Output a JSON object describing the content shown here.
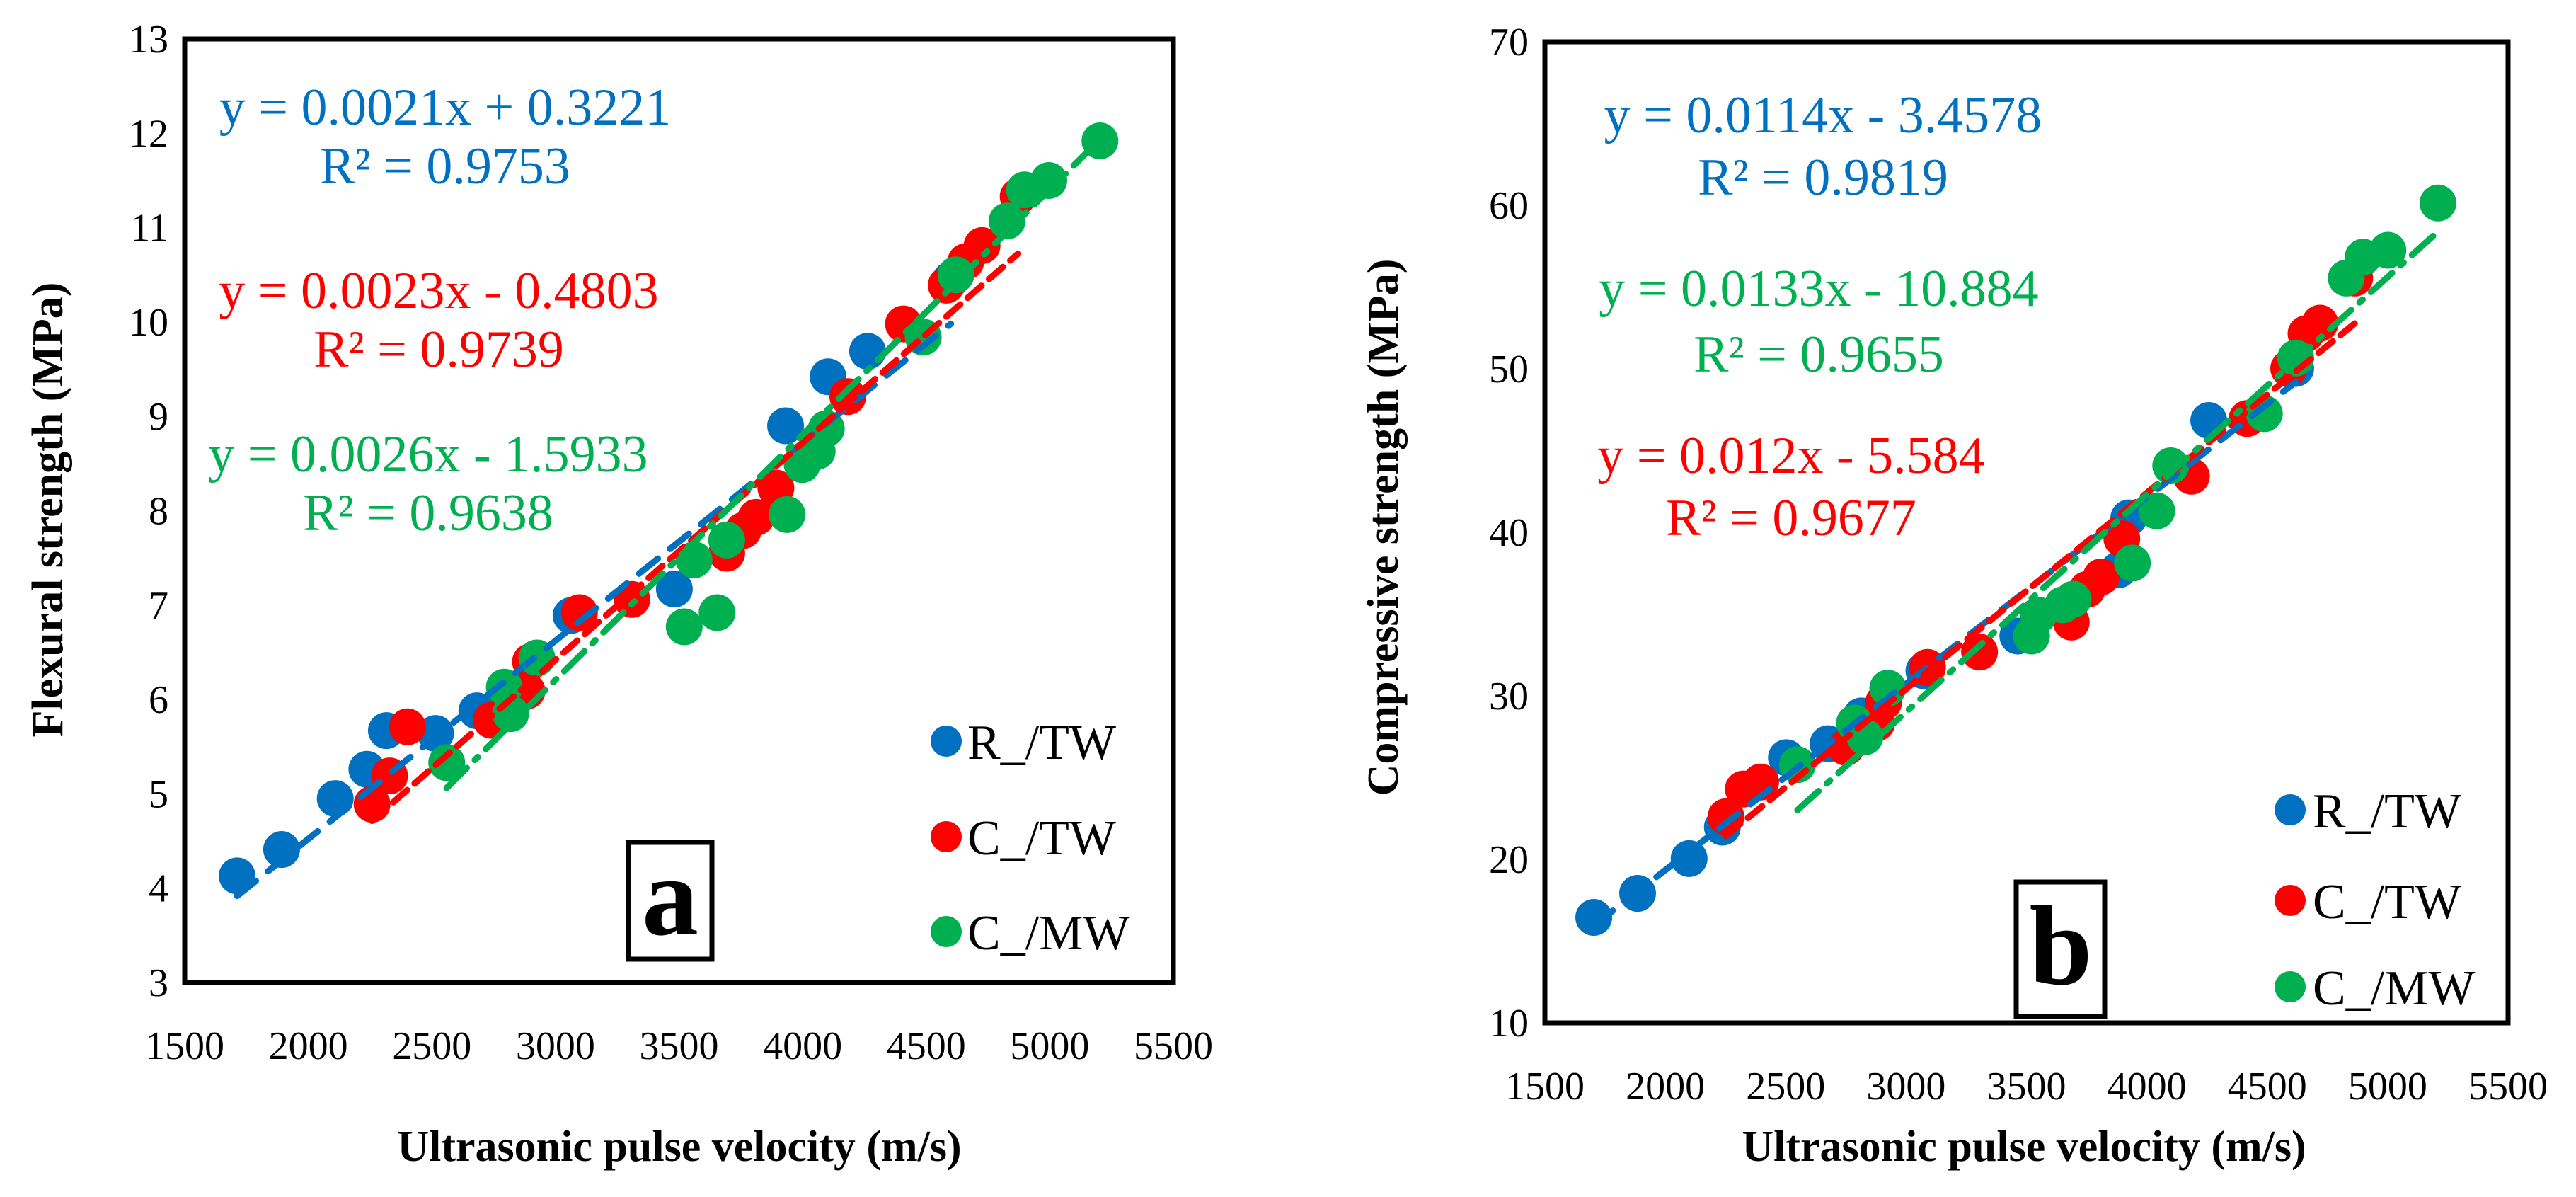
{
  "chart_data": [
    {
      "type": "scatter",
      "panel_label": "a",
      "xlabel": "Ultrasonic pulse velocity (m/s)",
      "ylabel": "Flexural strength (MPa)",
      "xlim": [
        1500,
        5500
      ],
      "ylim": [
        3,
        13
      ],
      "xticks": [
        "1500",
        "2000",
        "2500",
        "3000",
        "3500",
        "4000",
        "4500",
        "5000",
        "5500"
      ],
      "yticks": [
        "3",
        "4",
        "5",
        "6",
        "7",
        "8",
        "9",
        "10",
        "11",
        "12",
        "13"
      ],
      "grid": false,
      "legend_position": "bottom-right",
      "series": [
        {
          "name": "R_/TW",
          "color": "#0070C0",
          "x": [
            1712,
            1892,
            2109,
            2237,
            2316,
            2515,
            2682,
            3063,
            3481,
            3931,
            4103,
            4263,
            4600
          ],
          "y": [
            4.13,
            4.41,
            4.95,
            5.26,
            5.67,
            5.64,
            5.88,
            6.89,
            7.17,
            8.9,
            9.42,
            9.69,
            10.45
          ],
          "trendline": {
            "equation": "y = 0.0021x + 0.3221",
            "r2": "R² = 0.9753",
            "slope": 0.0021,
            "intercept": 0.3221
          }
        },
        {
          "name": "C_/TW",
          "color": "#FF0000",
          "x": [
            2258,
            2329,
            2401,
            2740,
            2885,
            2899,
            3097,
            3309,
            3693,
            3759,
            3812,
            3892,
            4183,
            4408,
            4581,
            4660,
            4726,
            4872
          ],
          "y": [
            4.89,
            5.19,
            5.71,
            5.78,
            6.09,
            6.4,
            6.92,
            7.06,
            7.55,
            7.79,
            7.93,
            8.24,
            9.21,
            9.98,
            10.39,
            10.64,
            10.81,
            11.33
          ],
          "trendline": {
            "equation": "y = 0.0023x - 0.4803",
            "r2": "R² = 0.9739",
            "slope": 0.0023,
            "intercept": -0.4803
          }
        },
        {
          "name": "C_/MW",
          "color": "#00B050",
          "x": [
            2560,
            2793,
            2819,
            2925,
            3521,
            3561,
            3654,
            3693,
            3937,
            3998,
            4059,
            4096,
            4488,
            4620,
            4827,
            4898,
            4996,
            5203
          ],
          "y": [
            5.33,
            6.13,
            5.85,
            6.44,
            6.77,
            7.48,
            6.92,
            7.69,
            7.96,
            8.49,
            8.63,
            8.87,
            9.84,
            10.5,
            11.07,
            11.4,
            11.5,
            11.92
          ],
          "trendline": {
            "equation": "y = 0.0026x - 1.5933",
            "r2": "R² = 0.9638",
            "slope": 0.0026,
            "intercept": -1.5933
          }
        }
      ]
    },
    {
      "type": "scatter",
      "panel_label": "b",
      "xlabel": "Ultrasonic pulse velocity (m/s)",
      "ylabel": "Compressive strength (MPa)",
      "xlim": [
        1500,
        5500
      ],
      "ylim": [
        10,
        70
      ],
      "xticks": [
        "1500",
        "2000",
        "2500",
        "3000",
        "3500",
        "4000",
        "4500",
        "5000",
        "5500"
      ],
      "yticks": [
        "10",
        "20",
        "30",
        "40",
        "50",
        "60",
        "70"
      ],
      "grid": false,
      "legend_position": "bottom-right",
      "series": [
        {
          "name": "R_/TW",
          "color": "#0070C0",
          "x": [
            1703,
            1885,
            2099,
            2237,
            2503,
            2676,
            2814,
            3074,
            3464,
            3882,
            3925,
            4257,
            4618
          ],
          "y": [
            16.45,
            17.92,
            20.05,
            21.97,
            26.22,
            27.07,
            28.77,
            31.53,
            33.66,
            37.7,
            40.88,
            46.84,
            50.02
          ],
          "trendline": {
            "equation": "y = 0.0114x - 3.4578",
            "r2": "R² = 0.9819",
            "slope": 0.0114,
            "intercept": -3.4578
          }
        },
        {
          "name": "C_/TW",
          "color": "#FF0000",
          "x": [
            2252,
            2324,
            2396,
            2751,
            2878,
            2907,
            3089,
            3305,
            3686,
            3752,
            3810,
            3896,
            4185,
            4416,
            4589,
            4661,
            4719,
            4863
          ],
          "y": [
            22.61,
            24.3,
            24.73,
            26.85,
            28.34,
            29.62,
            31.74,
            32.68,
            34.51,
            36.51,
            37.27,
            39.61,
            43.43,
            46.96,
            50.02,
            52.15,
            52.79,
            55.55
          ],
          "trendline": {
            "equation": "y = 0.012x - 5.584",
            "r2": "R² = 0.9677",
            "slope": 0.012,
            "intercept": -5.584
          }
        },
        {
          "name": "C_/MW",
          "color": "#00B050",
          "x": [
            2549,
            2786,
            2829,
            2924,
            3521,
            3550,
            3651,
            3694,
            3940,
            4041,
            4099,
            4488,
            4618,
            4828,
            4898,
            5001,
            5209
          ],
          "y": [
            25.79,
            28.34,
            27.49,
            30.47,
            33.66,
            34.93,
            35.57,
            35.91,
            38.12,
            41.31,
            44.07,
            47.26,
            50.66,
            55.55,
            56.83,
            57.25,
            60.14
          ],
          "trendline": {
            "equation": "y = 0.0133x - 10.884",
            "r2": "R² = 0.9655",
            "slope": 0.0133,
            "intercept": -10.884
          }
        }
      ]
    }
  ]
}
